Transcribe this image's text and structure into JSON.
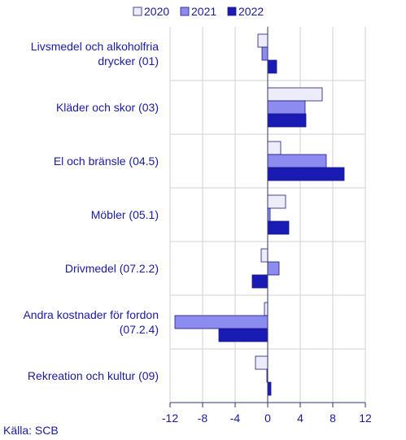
{
  "chart_data": {
    "type": "bar",
    "orientation": "horizontal",
    "categories": [
      [
        "Livsmedel och alkoholfria",
        "drycker (01)"
      ],
      [
        "Kläder och skor (03)"
      ],
      [
        "El och bränsle (04.5)"
      ],
      [
        "Möbler (05.1)"
      ],
      [
        "Drivmedel (07.2.2)"
      ],
      [
        "Andra kostnader för fordon",
        "(07.2.4)"
      ],
      [
        "Rekreation och kultur (09)"
      ]
    ],
    "series": [
      {
        "name": "2020",
        "color": "#ececfa",
        "values": [
          -1.2,
          6.7,
          1.6,
          2.2,
          -0.8,
          -0.4,
          -1.5
        ]
      },
      {
        "name": "2021",
        "color": "#8b8bf0",
        "values": [
          -0.7,
          4.6,
          7.2,
          0.3,
          1.4,
          -11.4,
          -0.1
        ]
      },
      {
        "name": "2022",
        "color": "#1a1ab4",
        "values": [
          1.1,
          4.7,
          9.4,
          2.6,
          -1.9,
          -6.0,
          0.4
        ]
      }
    ],
    "xlim": [
      -12,
      12
    ],
    "xticks": [
      "-12",
      "-8",
      "-4",
      "0",
      "4",
      "8",
      "12"
    ],
    "xtick_values": [
      -12,
      -8,
      -4,
      0,
      4,
      8,
      12
    ],
    "legend_position": "top",
    "grid": "vertical",
    "source": "Källa: SCB"
  }
}
